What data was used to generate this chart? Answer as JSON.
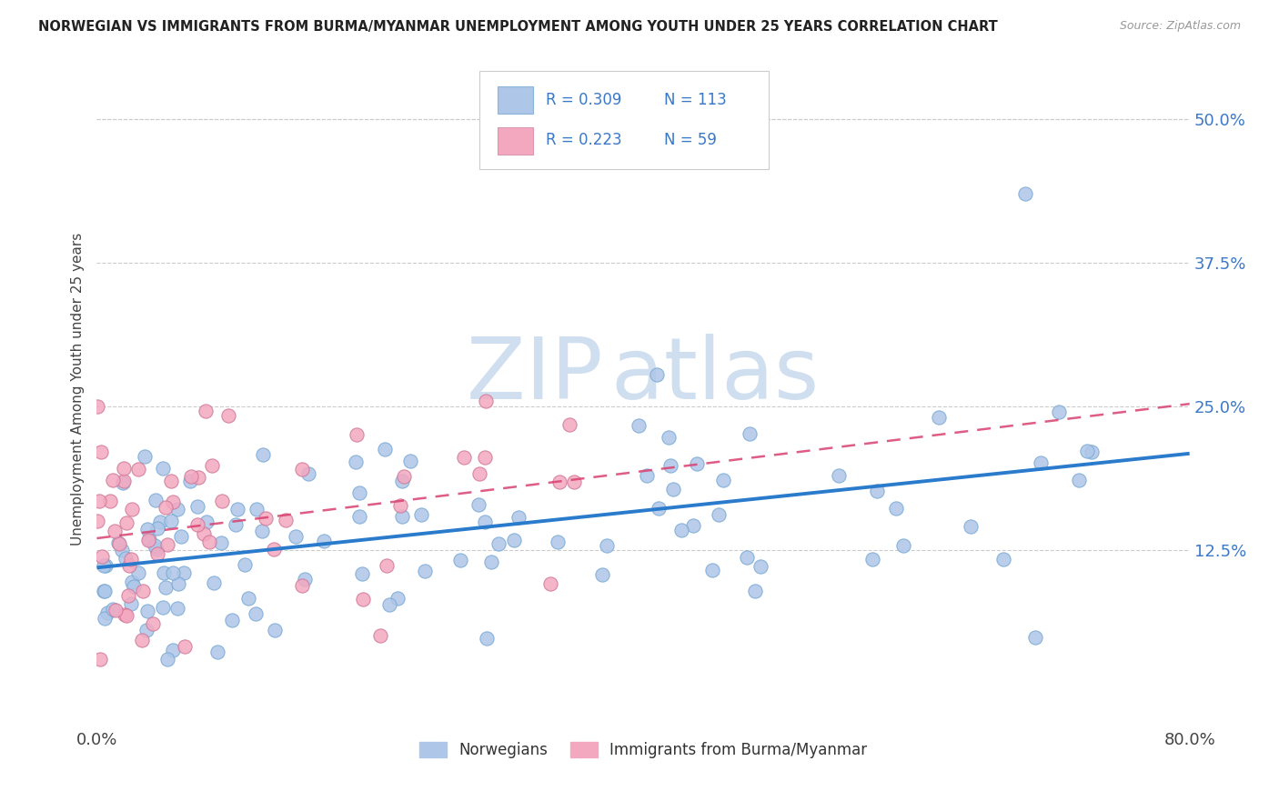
{
  "title": "NORWEGIAN VS IMMIGRANTS FROM BURMA/MYANMAR UNEMPLOYMENT AMONG YOUTH UNDER 25 YEARS CORRELATION CHART",
  "source": "Source: ZipAtlas.com",
  "ylabel": "Unemployment Among Youth under 25 years",
  "legend_labels": [
    "Norwegians",
    "Immigrants from Burma/Myanmar"
  ],
  "r_norwegians": 0.309,
  "n_norwegians": 113,
  "r_immigrants": 0.223,
  "n_immigrants": 59,
  "xlim": [
    0.0,
    0.8
  ],
  "ylim": [
    -0.03,
    0.56
  ],
  "ytick_vals": [
    0.125,
    0.25,
    0.375,
    0.5
  ],
  "ytick_labels": [
    "12.5%",
    "25.0%",
    "37.5%",
    "50.0%"
  ],
  "color_norwegian": "#aec6e8",
  "color_immigrant": "#f4a8c0",
  "color_norwegian_line": "#2b7bcc",
  "color_immigrant_line": "#d94070",
  "color_text_blue": "#3a78c9",
  "watermark_color": "#d0dff0",
  "background_color": "#ffffff",
  "grid_color": "#cccccc",
  "marker_size": 120,
  "legend_text_color": "#3a78c9",
  "legend_r_color": "#3a78c9",
  "source_color": "#999999"
}
